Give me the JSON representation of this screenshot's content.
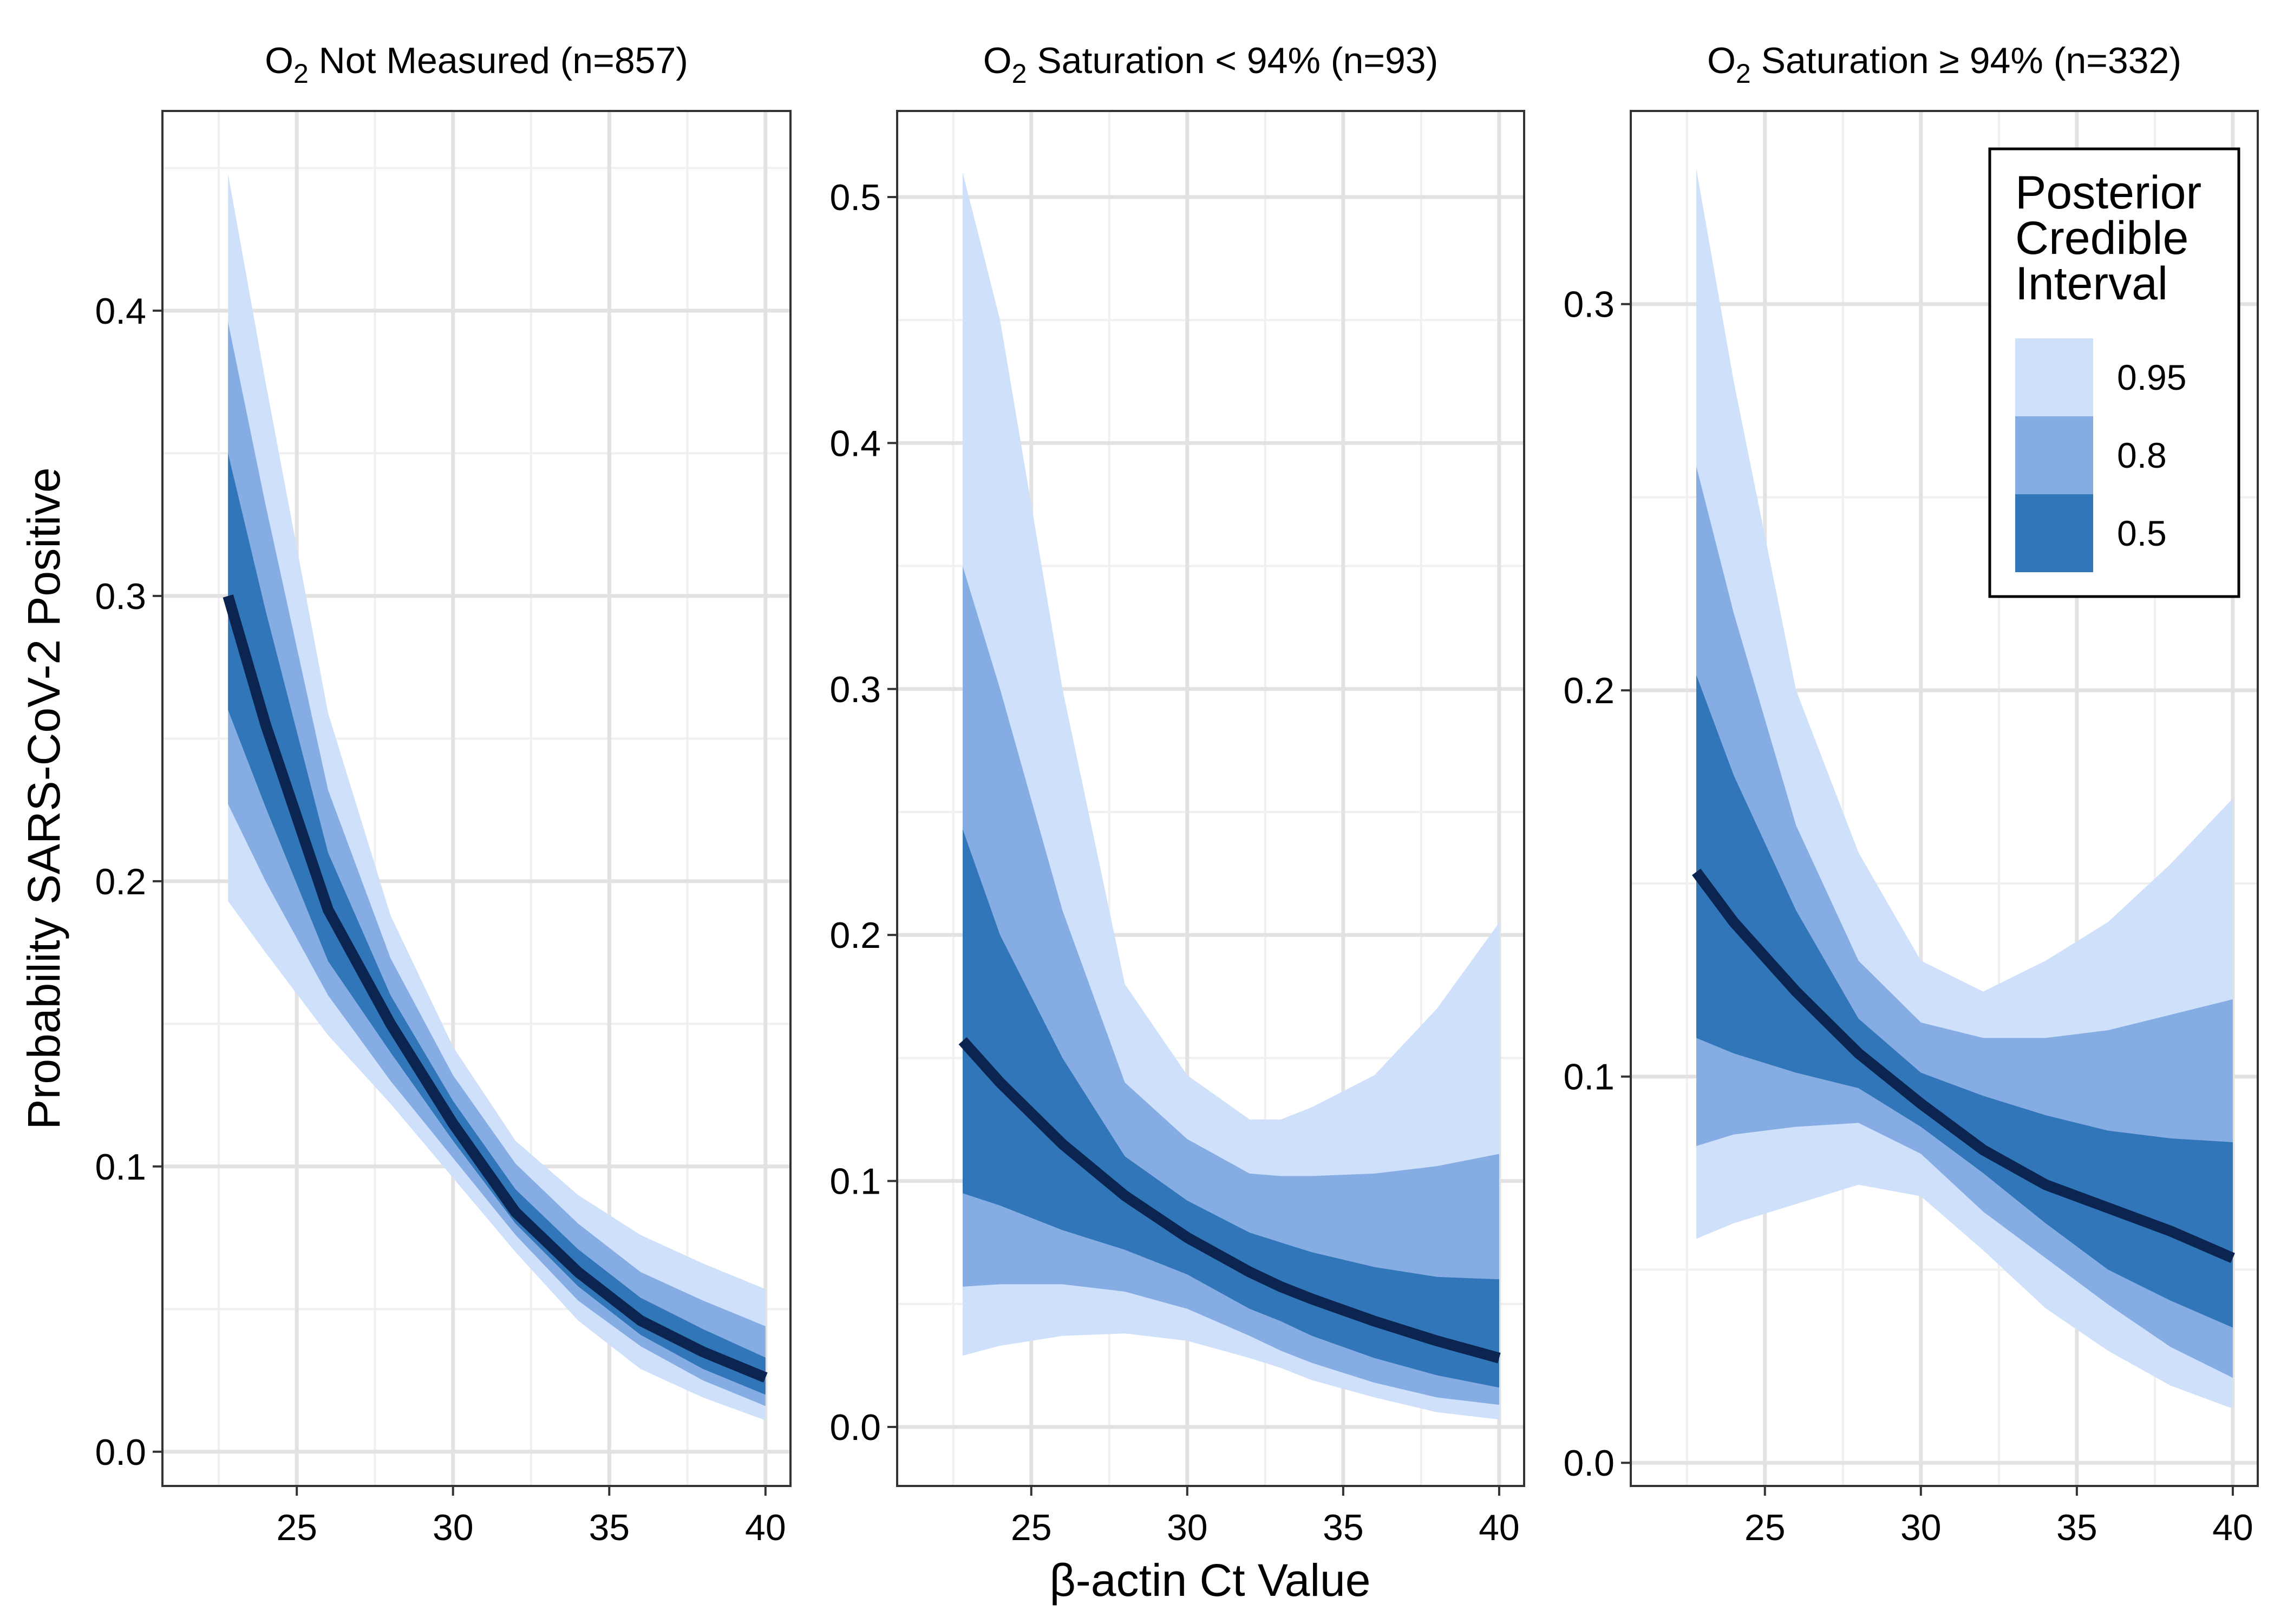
{
  "chart_data": {
    "type": "line",
    "layout": "facet-3-panels",
    "xlabel": "β-actin Ct Value",
    "ylabel": "Probability SARS-CoV-2 Positive",
    "x_ticks": [
      25,
      30,
      35,
      40
    ],
    "xlim": [
      20.7,
      40.8
    ],
    "grid": true,
    "legend": {
      "title_lines": [
        "Posterior",
        "Credible",
        "Interval"
      ],
      "placement": "top-right of third panel",
      "entries": [
        {
          "label": "0.95",
          "color": "#cfe0fb"
        },
        {
          "label": "0.8",
          "color": "#86ade3"
        },
        {
          "label": "0.5",
          "color": "#3176b8"
        }
      ]
    },
    "colors": {
      "line": "#0b2550",
      "band_95": "#cfe0fb",
      "band_80": "#86ade3",
      "band_50": "#3176b8"
    },
    "panels": [
      {
        "title_parts": [
          "O",
          "2",
          " Not Measured (n=857)"
        ],
        "ylim": [
          -0.012,
          0.47
        ],
        "y_ticks": [
          0.0,
          0.1,
          0.2,
          0.3,
          0.4
        ],
        "y_tick_labels": [
          "0.0",
          "0.1",
          "0.2",
          "0.3",
          "0.4"
        ],
        "x": [
          22.8,
          24,
          26,
          28,
          30,
          32,
          34,
          36,
          38,
          40
        ],
        "median": [
          0.3,
          0.255,
          0.19,
          0.15,
          0.115,
          0.084,
          0.063,
          0.046,
          0.035,
          0.026
        ],
        "ci95_low": [
          0.193,
          0.175,
          0.146,
          0.122,
          0.096,
          0.07,
          0.046,
          0.029,
          0.019,
          0.011
        ],
        "ci95_high": [
          0.448,
          0.375,
          0.259,
          0.188,
          0.142,
          0.109,
          0.09,
          0.076,
          0.066,
          0.057
        ],
        "ci80_low": [
          0.227,
          0.2,
          0.16,
          0.13,
          0.103,
          0.076,
          0.053,
          0.037,
          0.025,
          0.016
        ],
        "ci80_high": [
          0.396,
          0.332,
          0.232,
          0.173,
          0.132,
          0.101,
          0.08,
          0.063,
          0.053,
          0.044
        ],
        "ci50_low": [
          0.26,
          0.226,
          0.172,
          0.14,
          0.109,
          0.08,
          0.058,
          0.041,
          0.029,
          0.02
        ],
        "ci50_high": [
          0.35,
          0.295,
          0.21,
          0.16,
          0.123,
          0.092,
          0.071,
          0.054,
          0.043,
          0.033
        ]
      },
      {
        "title_parts": [
          "O",
          "2",
          " Saturation < 94% (n=93)"
        ],
        "ylim": [
          -0.024,
          0.535
        ],
        "y_ticks": [
          0.0,
          0.1,
          0.2,
          0.3,
          0.4,
          0.5
        ],
        "y_tick_labels": [
          "0.0",
          "0.1",
          "0.2",
          "0.3",
          "0.4",
          "0.5"
        ],
        "x": [
          22.8,
          24,
          26,
          28,
          30,
          32,
          33,
          34,
          36,
          38,
          40
        ],
        "median": [
          0.157,
          0.14,
          0.115,
          0.094,
          0.077,
          0.063,
          0.057,
          0.052,
          0.043,
          0.035,
          0.028
        ],
        "ci95_low": [
          0.029,
          0.033,
          0.037,
          0.038,
          0.035,
          0.028,
          0.024,
          0.019,
          0.012,
          0.006,
          0.003
        ],
        "ci95_high": [
          0.51,
          0.45,
          0.3,
          0.18,
          0.143,
          0.125,
          0.125,
          0.13,
          0.143,
          0.17,
          0.205
        ],
        "ci80_low": [
          0.057,
          0.058,
          0.058,
          0.055,
          0.048,
          0.037,
          0.031,
          0.026,
          0.018,
          0.012,
          0.009
        ],
        "ci80_high": [
          0.35,
          0.3,
          0.21,
          0.14,
          0.117,
          0.103,
          0.102,
          0.102,
          0.103,
          0.106,
          0.111
        ],
        "ci50_low": [
          0.095,
          0.09,
          0.08,
          0.072,
          0.062,
          0.048,
          0.043,
          0.037,
          0.028,
          0.021,
          0.016
        ],
        "ci50_high": [
          0.243,
          0.2,
          0.15,
          0.11,
          0.092,
          0.079,
          0.075,
          0.071,
          0.065,
          0.061,
          0.06
        ]
      },
      {
        "title_parts": [
          "O",
          "2",
          " Saturation ≥ 94% (n=332)"
        ],
        "ylim": [
          -0.006,
          0.35
        ],
        "y_ticks": [
          0.0,
          0.1,
          0.2,
          0.3
        ],
        "y_tick_labels": [
          "0.0",
          "0.1",
          "0.2",
          "0.3"
        ],
        "x": [
          22.8,
          24,
          26,
          28,
          30,
          32,
          34,
          36,
          38,
          40
        ],
        "median": [
          0.153,
          0.14,
          0.122,
          0.106,
          0.093,
          0.081,
          0.072,
          0.066,
          0.06,
          0.053
        ],
        "ci95_low": [
          0.058,
          0.062,
          0.067,
          0.072,
          0.069,
          0.055,
          0.04,
          0.029,
          0.02,
          0.014
        ],
        "ci95_high": [
          0.335,
          0.28,
          0.2,
          0.158,
          0.13,
          0.122,
          0.13,
          0.14,
          0.155,
          0.172
        ],
        "ci80_low": [
          0.082,
          0.085,
          0.087,
          0.088,
          0.08,
          0.065,
          0.053,
          0.041,
          0.03,
          0.022
        ],
        "ci80_high": [
          0.258,
          0.22,
          0.165,
          0.13,
          0.114,
          0.11,
          0.11,
          0.112,
          0.116,
          0.12
        ],
        "ci50_low": [
          0.11,
          0.106,
          0.101,
          0.097,
          0.087,
          0.075,
          0.062,
          0.05,
          0.042,
          0.035
        ],
        "ci50_high": [
          0.204,
          0.178,
          0.143,
          0.115,
          0.101,
          0.095,
          0.09,
          0.086,
          0.084,
          0.083
        ]
      }
    ]
  }
}
